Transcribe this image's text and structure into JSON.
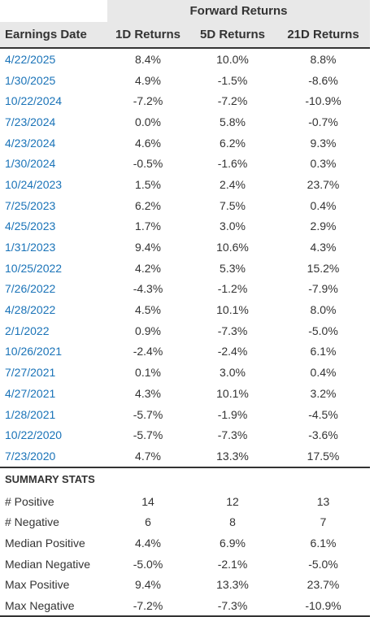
{
  "header": {
    "group_title": "Forward Returns",
    "col_date": "Earnings Date",
    "col_1d": "1D Returns",
    "col_5d": "5D Returns",
    "col_21d": "21D Returns"
  },
  "rows": [
    {
      "date": "4/22/2025",
      "r1": "8.4%",
      "r5": "10.0%",
      "r21": "8.8%"
    },
    {
      "date": "1/30/2025",
      "r1": "4.9%",
      "r5": "-1.5%",
      "r21": "-8.6%"
    },
    {
      "date": "10/22/2024",
      "r1": "-7.2%",
      "r5": "-7.2%",
      "r21": "-10.9%"
    },
    {
      "date": "7/23/2024",
      "r1": "0.0%",
      "r5": "5.8%",
      "r21": "-0.7%"
    },
    {
      "date": "4/23/2024",
      "r1": "4.6%",
      "r5": "6.2%",
      "r21": "9.3%"
    },
    {
      "date": "1/30/2024",
      "r1": "-0.5%",
      "r5": "-1.6%",
      "r21": "0.3%"
    },
    {
      "date": "10/24/2023",
      "r1": "1.5%",
      "r5": "2.4%",
      "r21": "23.7%"
    },
    {
      "date": "7/25/2023",
      "r1": "6.2%",
      "r5": "7.5%",
      "r21": "0.4%"
    },
    {
      "date": "4/25/2023",
      "r1": "1.7%",
      "r5": "3.0%",
      "r21": "2.9%"
    },
    {
      "date": "1/31/2023",
      "r1": "9.4%",
      "r5": "10.6%",
      "r21": "4.3%"
    },
    {
      "date": "10/25/2022",
      "r1": "4.2%",
      "r5": "5.3%",
      "r21": "15.2%"
    },
    {
      "date": "7/26/2022",
      "r1": "-4.3%",
      "r5": "-1.2%",
      "r21": "-7.9%"
    },
    {
      "date": "4/28/2022",
      "r1": "4.5%",
      "r5": "10.1%",
      "r21": "8.0%"
    },
    {
      "date": "2/1/2022",
      "r1": "0.9%",
      "r5": "-7.3%",
      "r21": "-5.0%"
    },
    {
      "date": "10/26/2021",
      "r1": "-2.4%",
      "r5": "-2.4%",
      "r21": "6.1%"
    },
    {
      "date": "7/27/2021",
      "r1": "0.1%",
      "r5": "3.0%",
      "r21": "0.4%"
    },
    {
      "date": "4/27/2021",
      "r1": "4.3%",
      "r5": "10.1%",
      "r21": "3.2%"
    },
    {
      "date": "1/28/2021",
      "r1": "-5.7%",
      "r5": "-1.9%",
      "r21": "-4.5%"
    },
    {
      "date": "10/22/2020",
      "r1": "-5.7%",
      "r5": "-7.3%",
      "r21": "-3.6%"
    },
    {
      "date": "7/23/2020",
      "r1": "4.7%",
      "r5": "13.3%",
      "r21": "17.5%"
    }
  ],
  "summary": {
    "title": "SUMMARY STATS",
    "stats": [
      {
        "label": "# Positive",
        "r1": "14",
        "r5": "12",
        "r21": "13"
      },
      {
        "label": "# Negative",
        "r1": "6",
        "r5": "8",
        "r21": "7"
      },
      {
        "label": "Median Positive",
        "r1": "4.4%",
        "r5": "6.9%",
        "r21": "6.1%"
      },
      {
        "label": "Median Negative",
        "r1": "-5.0%",
        "r5": "-2.1%",
        "r21": "-5.0%"
      },
      {
        "label": "Max Positive",
        "r1": "9.4%",
        "r5": "13.3%",
        "r21": "23.7%"
      },
      {
        "label": "Max Negative",
        "r1": "-7.2%",
        "r5": "-7.3%",
        "r21": "-10.9%"
      }
    ]
  },
  "colors": {
    "date_link": "#1a73b8",
    "header_bg": "#e8e8e8",
    "text": "#333333"
  }
}
